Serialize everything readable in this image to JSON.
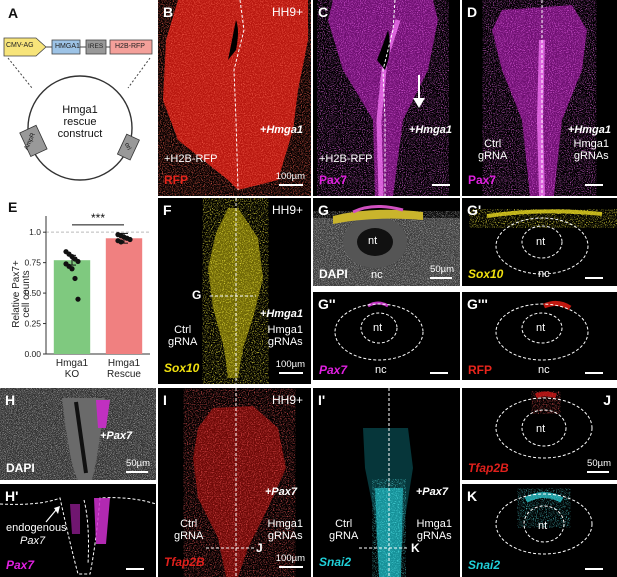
{
  "panel_a": {
    "label": "A",
    "promoter": "CMV-AG",
    "gene": "HMGA1",
    "ires": "IRES",
    "reporter": "H2B-RFP",
    "plasmid_title": "Hmga1\nrescue\nconstruct",
    "amp": "AmpR",
    "ori": "ori"
  },
  "panel_b": {
    "label": "B",
    "stage": "HH9+",
    "left_text": "+H2B-RFP",
    "right_text": "+Hmga1",
    "stain": "RFP",
    "scale": "100µm"
  },
  "panel_c": {
    "label": "C",
    "left_text": "+H2B-RFP",
    "right_text": "+Hmga1",
    "stain": "Pax7"
  },
  "panel_d": {
    "label": "D",
    "left_text": "Ctrl\ngRNA",
    "right_bold": "+Hmga1",
    "right_text": "Hmga1\ngRNAs",
    "stain": "Pax7"
  },
  "panel_e": {
    "label": "E",
    "significance": "***",
    "ylabel": "Relative Pax7+\ncell counts"
  },
  "chart_data": {
    "type": "bar",
    "categories": [
      "Hmga1\nKO",
      "Hmga1\nRescue"
    ],
    "values": [
      0.77,
      0.95
    ],
    "yticks": [
      "0.00",
      "0.25",
      "0.50",
      "0.75",
      "1.0"
    ],
    "ylim": [
      0,
      1.1
    ],
    "colors": [
      "#7fc97f",
      "#f08080"
    ],
    "points": [
      [
        0.84,
        0.82,
        0.8,
        0.78,
        0.76,
        0.74,
        0.72,
        0.7,
        0.62,
        0.45
      ],
      [
        0.98,
        0.97,
        0.96,
        0.95,
        0.94,
        0.93,
        0.92
      ]
    ]
  },
  "panel_f": {
    "label": "F",
    "stage": "HH9+",
    "section": "G",
    "right_bold": "+Hmga1",
    "left_text": "Ctrl\ngRNA",
    "right_text": "Hmga1\ngRNAs",
    "stain": "Sox10",
    "scale": "100µm"
  },
  "panel_g": {
    "label": "G",
    "nt": "nt",
    "nc": "nc",
    "stain": "DAPI",
    "scale": "50µm"
  },
  "panel_g1": {
    "label": "G'",
    "nt": "nt",
    "nc": "nc",
    "stain": "Sox10"
  },
  "panel_g2": {
    "label": "G''",
    "nt": "nt",
    "nc": "nc",
    "stain": "Pax7"
  },
  "panel_g3": {
    "label": "G'''",
    "nt": "nt",
    "nc": "nc",
    "stain": "RFP"
  },
  "panel_h": {
    "label": "H",
    "right_bold": "+Pax7",
    "stain": "DAPI",
    "scale": "50µm"
  },
  "panel_h1": {
    "label": "H'",
    "endogenous": "endogenous",
    "endogenous_gene": "Pax7",
    "stain": "Pax7"
  },
  "panel_i": {
    "label": "I",
    "stage": "HH9+",
    "right_bold": "+Pax7",
    "left_text": "Ctrl\ngRNA",
    "right_text": "Hmga1\ngRNAs",
    "section": "J",
    "stain": "Tfap2B",
    "scale": "100µm"
  },
  "panel_i1": {
    "label": "I'",
    "right_bold": "+Pax7",
    "left_text": "Ctrl\ngRNA",
    "right_text": "Hmga1\ngRNAs",
    "section": "K",
    "stain": "Snai2"
  },
  "panel_j": {
    "label": "J",
    "nt": "nt",
    "stain": "Tfap2B",
    "scale": "50µm"
  },
  "panel_k": {
    "label": "K",
    "nt": "nt",
    "stain": "Snai2"
  },
  "colors": {
    "rfp": "#e8251c",
    "pax7": "#e020e0",
    "sox10": "#f0e010",
    "tfap2b": "#e0201c",
    "snai2": "#20d0d8"
  }
}
